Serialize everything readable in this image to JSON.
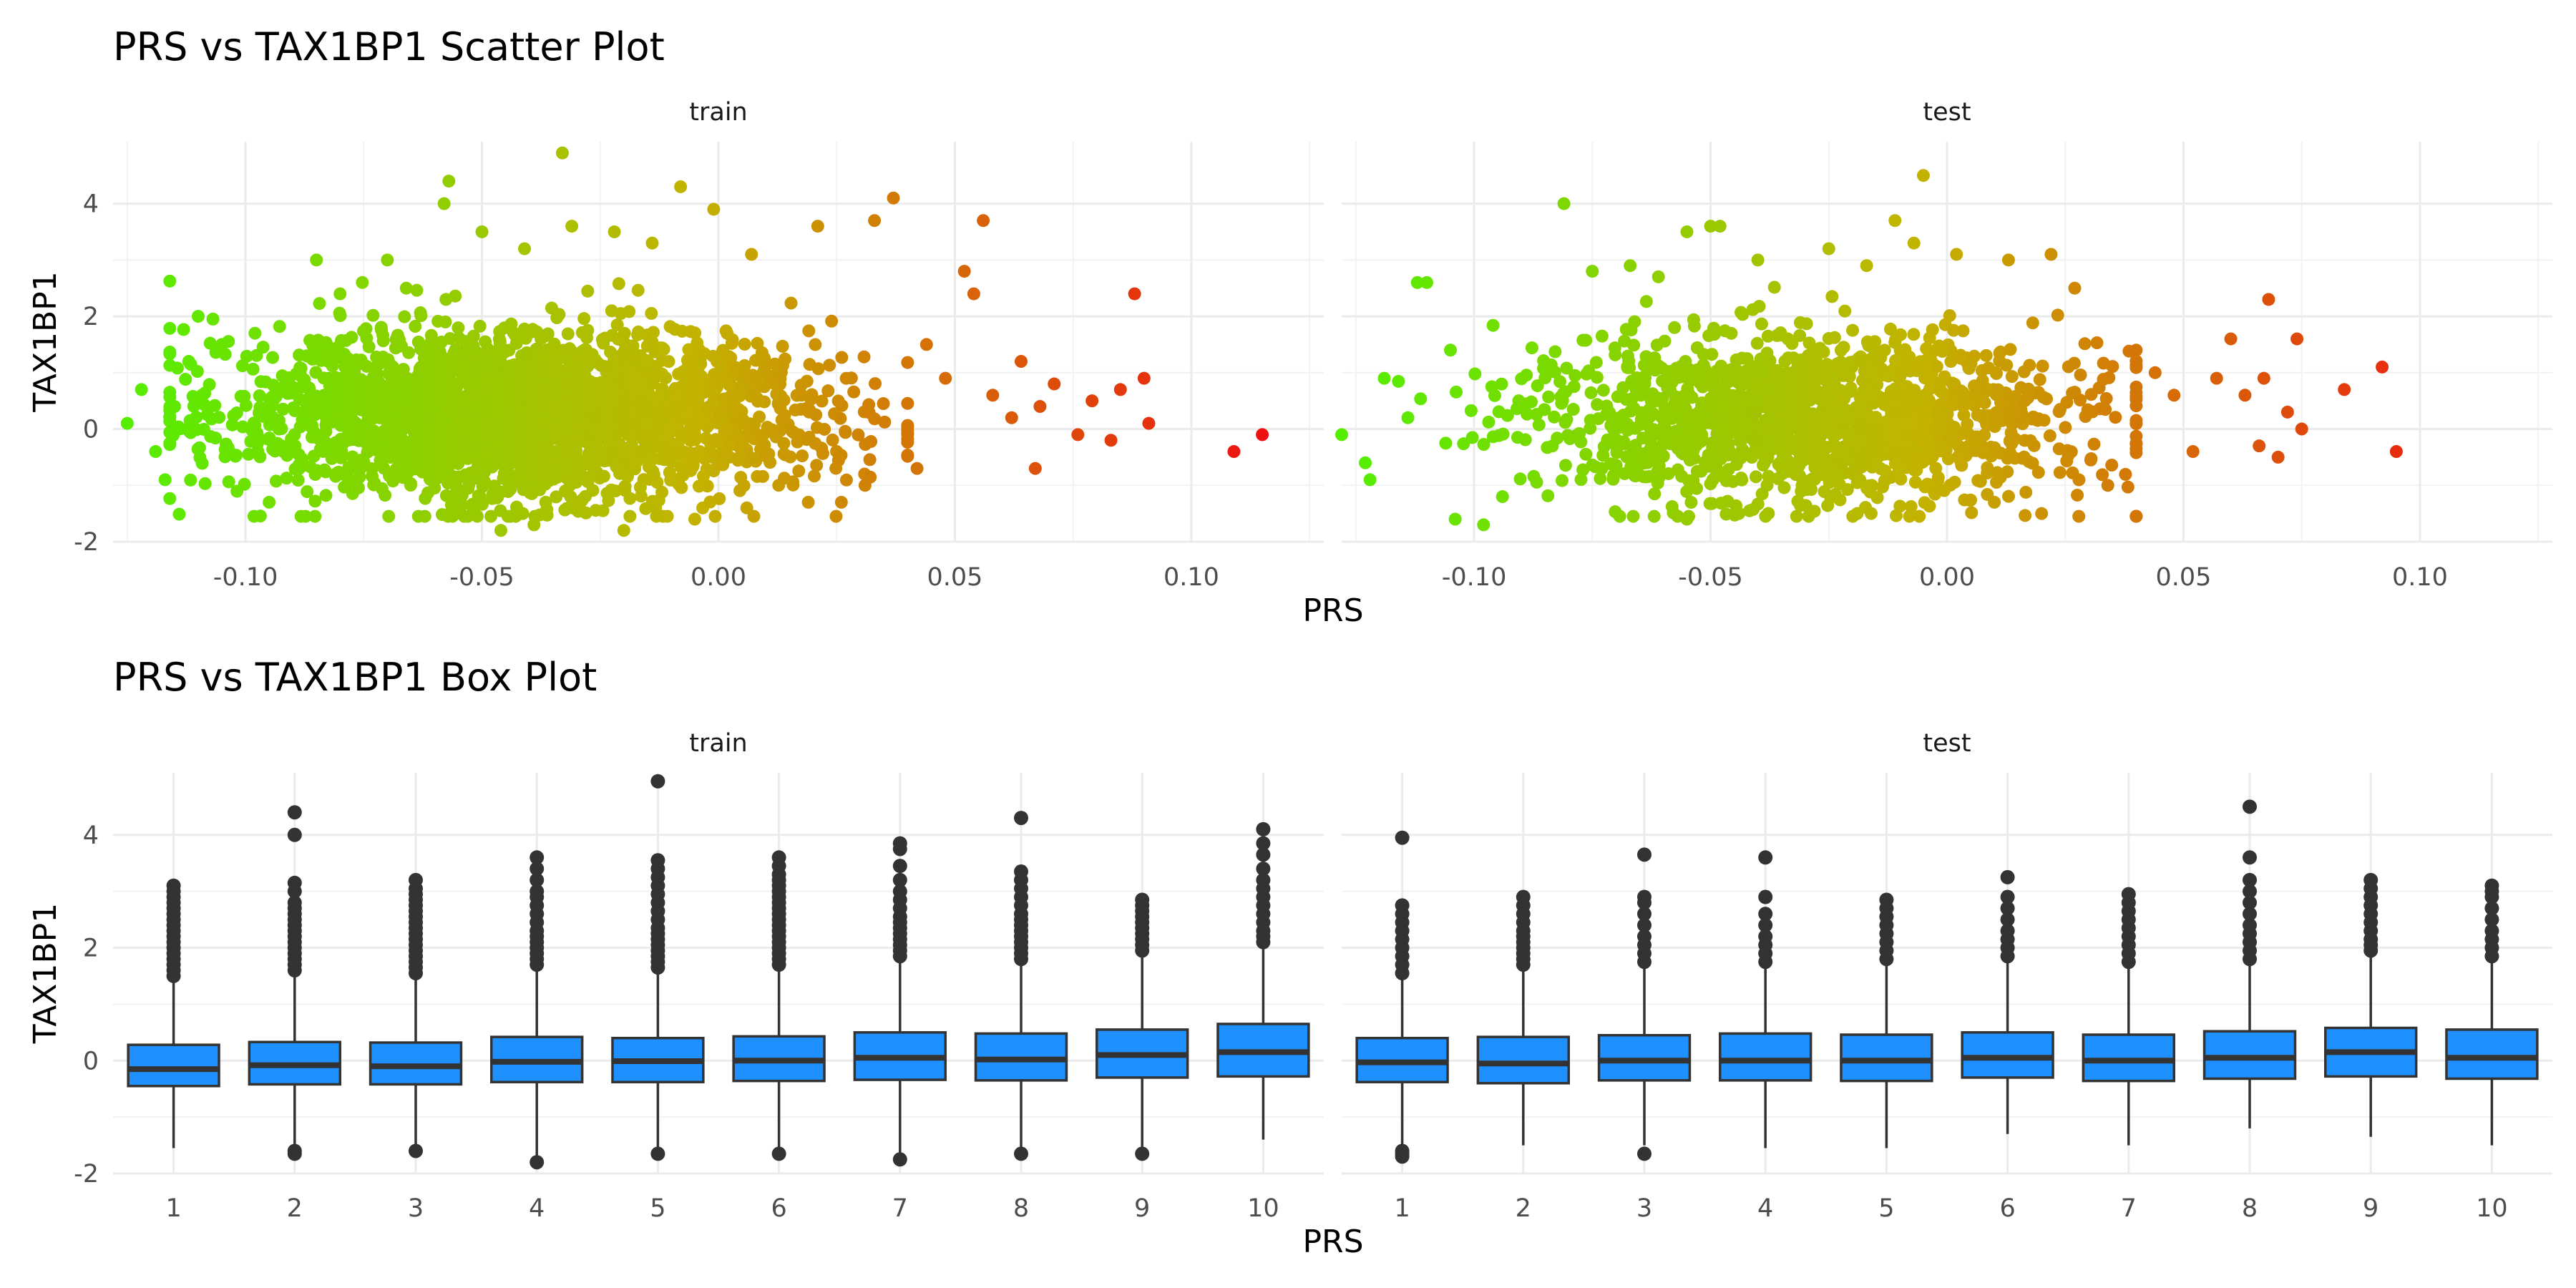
{
  "colors": {
    "background": "#ffffff",
    "grid_major": "#ebebeb",
    "grid_minor": "#f2f2f2",
    "box_fill": "#1e90ff",
    "box_line": "#333333",
    "gradient_low": "#55ee00",
    "gradient_mid": "#c3b300",
    "gradient_high": "#ee1111"
  },
  "chart_data": [
    {
      "type": "scatter",
      "title": "PRS vs TAX1BP1 Scatter Plot",
      "xlabel": "PRS",
      "ylabel": "TAX1BP1",
      "xlim": [
        -0.128,
        0.128
      ],
      "ylim": [
        -2.0,
        5.1
      ],
      "x_ticks": [
        -0.1,
        -0.05,
        0.0,
        0.05,
        0.1
      ],
      "x_tick_labels": [
        "-0.10",
        "-0.05",
        "0.00",
        "0.05",
        "0.10"
      ],
      "y_ticks": [
        -2,
        0,
        2,
        4
      ],
      "y_tick_labels": [
        "-2",
        "0",
        "2",
        "4"
      ],
      "grid": true,
      "color_scale": "PRS gradient green to red",
      "panels": [
        {
          "strip": "train",
          "cloud": {
            "count": 2600,
            "x_center": -0.04,
            "x_sd": 0.03,
            "y_center": 0.25,
            "y_sd": 0.75
          },
          "points": [
            [
              -0.125,
              0.1
            ],
            [
              -0.122,
              0.7
            ],
            [
              -0.119,
              -0.4
            ],
            [
              -0.117,
              -0.9
            ],
            [
              -0.115,
              0.4
            ],
            [
              -0.112,
              1.2
            ],
            [
              -0.11,
              2.0
            ],
            [
              -0.105,
              1.5
            ],
            [
              -0.098,
              1.7
            ],
            [
              -0.095,
              -1.3
            ],
            [
              -0.085,
              3.0
            ],
            [
              -0.08,
              2.4
            ],
            [
              -0.07,
              3.0
            ],
            [
              -0.066,
              2.5
            ],
            [
              -0.057,
              4.4
            ],
            [
              -0.058,
              4.0
            ],
            [
              -0.05,
              3.5
            ],
            [
              -0.041,
              3.2
            ],
            [
              -0.033,
              4.9
            ],
            [
              -0.031,
              3.6
            ],
            [
              -0.022,
              3.5
            ],
            [
              -0.014,
              3.3
            ],
            [
              -0.008,
              4.3
            ],
            [
              -0.001,
              3.9
            ],
            [
              0.007,
              3.1
            ],
            [
              0.021,
              3.6
            ],
            [
              0.033,
              3.7
            ],
            [
              0.037,
              4.1
            ],
            [
              -0.046,
              -1.8
            ],
            [
              -0.039,
              -1.7
            ],
            [
              -0.02,
              -1.8
            ],
            [
              -0.005,
              -1.6
            ],
            [
              0.006,
              -1.4
            ],
            [
              0.019,
              -1.3
            ],
            [
              0.026,
              -1.3
            ],
            [
              0.031,
              -1.0
            ],
            [
              0.042,
              -0.7
            ],
            [
              0.044,
              1.5
            ],
            [
              0.048,
              0.9
            ],
            [
              0.052,
              2.8
            ],
            [
              0.054,
              2.4
            ],
            [
              0.056,
              3.7
            ],
            [
              0.058,
              0.6
            ],
            [
              0.062,
              0.2
            ],
            [
              0.064,
              1.2
            ],
            [
              0.067,
              -0.7
            ],
            [
              0.068,
              0.4
            ],
            [
              0.071,
              0.8
            ],
            [
              0.076,
              -0.1
            ],
            [
              0.079,
              0.5
            ],
            [
              0.083,
              -0.2
            ],
            [
              0.085,
              0.7
            ],
            [
              0.088,
              2.4
            ],
            [
              0.09,
              0.9
            ],
            [
              0.091,
              0.1
            ],
            [
              0.109,
              -0.4
            ],
            [
              0.115,
              -0.1
            ]
          ]
        },
        {
          "strip": "test",
          "cloud": {
            "count": 1500,
            "x_center": -0.03,
            "x_sd": 0.03,
            "y_center": 0.2,
            "y_sd": 0.75
          },
          "points": [
            [
              -0.128,
              -0.1
            ],
            [
              -0.123,
              -0.6
            ],
            [
              -0.122,
              -0.9
            ],
            [
              -0.119,
              0.9
            ],
            [
              -0.114,
              0.2
            ],
            [
              -0.112,
              2.6
            ],
            [
              -0.11,
              2.6
            ],
            [
              -0.105,
              1.4
            ],
            [
              -0.104,
              -1.6
            ],
            [
              -0.098,
              -1.7
            ],
            [
              -0.094,
              -1.2
            ],
            [
              -0.081,
              4.0
            ],
            [
              -0.075,
              2.8
            ],
            [
              -0.067,
              2.9
            ],
            [
              -0.055,
              3.5
            ],
            [
              -0.05,
              3.6
            ],
            [
              -0.048,
              3.6
            ],
            [
              -0.04,
              3.0
            ],
            [
              -0.025,
              3.2
            ],
            [
              -0.017,
              2.9
            ],
            [
              -0.011,
              3.7
            ],
            [
              -0.007,
              3.3
            ],
            [
              -0.005,
              4.5
            ],
            [
              0.002,
              3.1
            ],
            [
              0.013,
              3.0
            ],
            [
              0.022,
              3.1
            ],
            [
              0.027,
              2.5
            ],
            [
              -0.055,
              -1.6
            ],
            [
              -0.044,
              -1.5
            ],
            [
              -0.019,
              -1.5
            ],
            [
              0.01,
              -1.3
            ],
            [
              0.02,
              -1.5
            ],
            [
              0.034,
              -1.0
            ],
            [
              0.04,
              1.4
            ],
            [
              0.044,
              1.0
            ],
            [
              0.048,
              0.6
            ],
            [
              0.052,
              -0.4
            ],
            [
              0.057,
              0.9
            ],
            [
              0.06,
              1.6
            ],
            [
              0.063,
              0.6
            ],
            [
              0.066,
              -0.3
            ],
            [
              0.067,
              0.9
            ],
            [
              0.068,
              2.3
            ],
            [
              0.07,
              -0.5
            ],
            [
              0.072,
              0.3
            ],
            [
              0.074,
              1.6
            ],
            [
              0.075,
              0.0
            ],
            [
              0.084,
              0.7
            ],
            [
              0.092,
              1.1
            ],
            [
              0.095,
              -0.4
            ]
          ]
        }
      ]
    },
    {
      "type": "box",
      "title": "PRS vs TAX1BP1 Box Plot",
      "xlabel": "PRS",
      "ylabel": "TAX1BP1",
      "categories": [
        "1",
        "2",
        "3",
        "4",
        "5",
        "6",
        "7",
        "8",
        "9",
        "10"
      ],
      "ylim": [
        -2.0,
        5.1
      ],
      "y_ticks": [
        -2,
        0,
        2,
        4
      ],
      "y_tick_labels": [
        "-2",
        "0",
        "2",
        "4"
      ],
      "grid": true,
      "panels": [
        {
          "strip": "train",
          "boxes": [
            {
              "q1": -0.45,
              "median": -0.15,
              "q3": 0.28,
              "lower": -1.55,
              "upper": 1.4,
              "outliers": [
                1.5,
                1.6,
                1.7,
                1.8,
                1.9,
                2.0,
                2.1,
                2.2,
                2.3,
                2.4,
                2.5,
                2.6,
                2.7,
                2.8,
                2.9,
                3.0,
                3.1
              ]
            },
            {
              "q1": -0.42,
              "median": -0.08,
              "q3": 0.33,
              "lower": -1.5,
              "upper": 1.5,
              "outliers": [
                -1.6,
                -1.65,
                1.6,
                1.7,
                1.8,
                1.9,
                2.0,
                2.1,
                2.2,
                2.3,
                2.4,
                2.5,
                2.6,
                2.7,
                2.8,
                3.0,
                3.15,
                4.0,
                4.4
              ]
            },
            {
              "q1": -0.42,
              "median": -0.1,
              "q3": 0.32,
              "lower": -1.5,
              "upper": 1.45,
              "outliers": [
                -1.6,
                1.55,
                1.65,
                1.75,
                1.85,
                1.95,
                2.05,
                2.15,
                2.25,
                2.35,
                2.45,
                2.55,
                2.65,
                2.75,
                2.85,
                2.95,
                3.05,
                3.2
              ]
            },
            {
              "q1": -0.38,
              "median": -0.02,
              "q3": 0.42,
              "lower": -1.7,
              "upper": 1.6,
              "outliers": [
                -1.8,
                1.7,
                1.8,
                1.9,
                2.0,
                2.1,
                2.2,
                2.3,
                2.45,
                2.6,
                2.75,
                2.9,
                3.0,
                3.2,
                3.4,
                3.6
              ]
            },
            {
              "q1": -0.38,
              "median": -0.01,
              "q3": 0.4,
              "lower": -1.55,
              "upper": 1.55,
              "outliers": [
                -1.65,
                1.65,
                1.75,
                1.85,
                1.95,
                2.05,
                2.15,
                2.25,
                2.35,
                2.5,
                2.65,
                2.8,
                2.95,
                3.1,
                3.25,
                3.4,
                3.55,
                4.95
              ]
            },
            {
              "q1": -0.36,
              "median": 0.0,
              "q3": 0.43,
              "lower": -1.55,
              "upper": 1.6,
              "outliers": [
                -1.65,
                1.7,
                1.8,
                1.9,
                2.0,
                2.1,
                2.2,
                2.3,
                2.4,
                2.5,
                2.6,
                2.7,
                2.8,
                2.9,
                3.0,
                3.1,
                3.2,
                3.3,
                3.45,
                3.6
              ]
            },
            {
              "q1": -0.34,
              "median": 0.05,
              "q3": 0.5,
              "lower": -1.65,
              "upper": 1.75,
              "outliers": [
                -1.75,
                1.85,
                1.95,
                2.05,
                2.15,
                2.25,
                2.35,
                2.45,
                2.55,
                2.7,
                2.85,
                3.0,
                3.2,
                3.45,
                3.75,
                3.85
              ]
            },
            {
              "q1": -0.35,
              "median": 0.02,
              "q3": 0.48,
              "lower": -1.55,
              "upper": 1.7,
              "outliers": [
                -1.65,
                1.8,
                1.9,
                2.0,
                2.1,
                2.2,
                2.3,
                2.4,
                2.5,
                2.6,
                2.75,
                2.9,
                3.05,
                3.2,
                3.35,
                4.3
              ]
            },
            {
              "q1": -0.3,
              "median": 0.1,
              "q3": 0.55,
              "lower": -1.55,
              "upper": 1.85,
              "outliers": [
                -1.65,
                1.95,
                2.05,
                2.15,
                2.25,
                2.35,
                2.45,
                2.55,
                2.65,
                2.75,
                2.85
              ]
            },
            {
              "q1": -0.28,
              "median": 0.15,
              "q3": 0.65,
              "lower": -1.4,
              "upper": 2.0,
              "outliers": [
                2.1,
                2.2,
                2.3,
                2.45,
                2.6,
                2.75,
                2.9,
                3.05,
                3.2,
                3.4,
                3.65,
                3.85,
                4.1
              ]
            }
          ]
        },
        {
          "strip": "test",
          "boxes": [
            {
              "q1": -0.38,
              "median": -0.03,
              "q3": 0.4,
              "lower": -1.5,
              "upper": 1.45,
              "outliers": [
                -1.6,
                -1.65,
                -1.7,
                1.55,
                1.7,
                1.85,
                2.0,
                2.15,
                2.3,
                2.45,
                2.6,
                2.75,
                3.95
              ]
            },
            {
              "q1": -0.4,
              "median": -0.05,
              "q3": 0.42,
              "lower": -1.5,
              "upper": 1.6,
              "outliers": [
                1.7,
                1.8,
                1.9,
                2.0,
                2.1,
                2.2,
                2.3,
                2.45,
                2.6,
                2.75,
                2.9
              ]
            },
            {
              "q1": -0.35,
              "median": 0.0,
              "q3": 0.45,
              "lower": -1.5,
              "upper": 1.65,
              "outliers": [
                -1.65,
                1.75,
                1.9,
                2.05,
                2.2,
                2.4,
                2.6,
                2.8,
                2.9,
                3.65
              ]
            },
            {
              "q1": -0.35,
              "median": 0.0,
              "q3": 0.48,
              "lower": -1.55,
              "upper": 1.65,
              "outliers": [
                1.75,
                1.9,
                2.05,
                2.2,
                2.4,
                2.6,
                2.9,
                3.6
              ]
            },
            {
              "q1": -0.36,
              "median": 0.0,
              "q3": 0.46,
              "lower": -1.55,
              "upper": 1.7,
              "outliers": [
                1.8,
                1.95,
                2.1,
                2.25,
                2.4,
                2.55,
                2.7,
                2.85
              ]
            },
            {
              "q1": -0.3,
              "median": 0.05,
              "q3": 0.5,
              "lower": -1.3,
              "upper": 1.75,
              "outliers": [
                1.85,
                2.0,
                2.15,
                2.3,
                2.5,
                2.7,
                2.9,
                3.25
              ]
            },
            {
              "q1": -0.36,
              "median": 0.0,
              "q3": 0.46,
              "lower": -1.5,
              "upper": 1.65,
              "outliers": [
                1.75,
                1.9,
                2.05,
                2.2,
                2.35,
                2.5,
                2.65,
                2.8,
                2.95
              ]
            },
            {
              "q1": -0.32,
              "median": 0.05,
              "q3": 0.52,
              "lower": -1.2,
              "upper": 1.7,
              "outliers": [
                1.8,
                1.95,
                2.1,
                2.25,
                2.4,
                2.6,
                2.8,
                3.0,
                3.2,
                3.6,
                4.5
              ]
            },
            {
              "q1": -0.28,
              "median": 0.15,
              "q3": 0.58,
              "lower": -1.35,
              "upper": 1.85,
              "outliers": [
                1.95,
                2.05,
                2.15,
                2.3,
                2.45,
                2.6,
                2.75,
                2.9,
                3.05,
                3.2
              ]
            },
            {
              "q1": -0.32,
              "median": 0.05,
              "q3": 0.55,
              "lower": -1.5,
              "upper": 1.75,
              "outliers": [
                1.85,
                2.0,
                2.15,
                2.3,
                2.5,
                2.7,
                2.9,
                3.0,
                3.1
              ]
            }
          ]
        }
      ]
    }
  ]
}
